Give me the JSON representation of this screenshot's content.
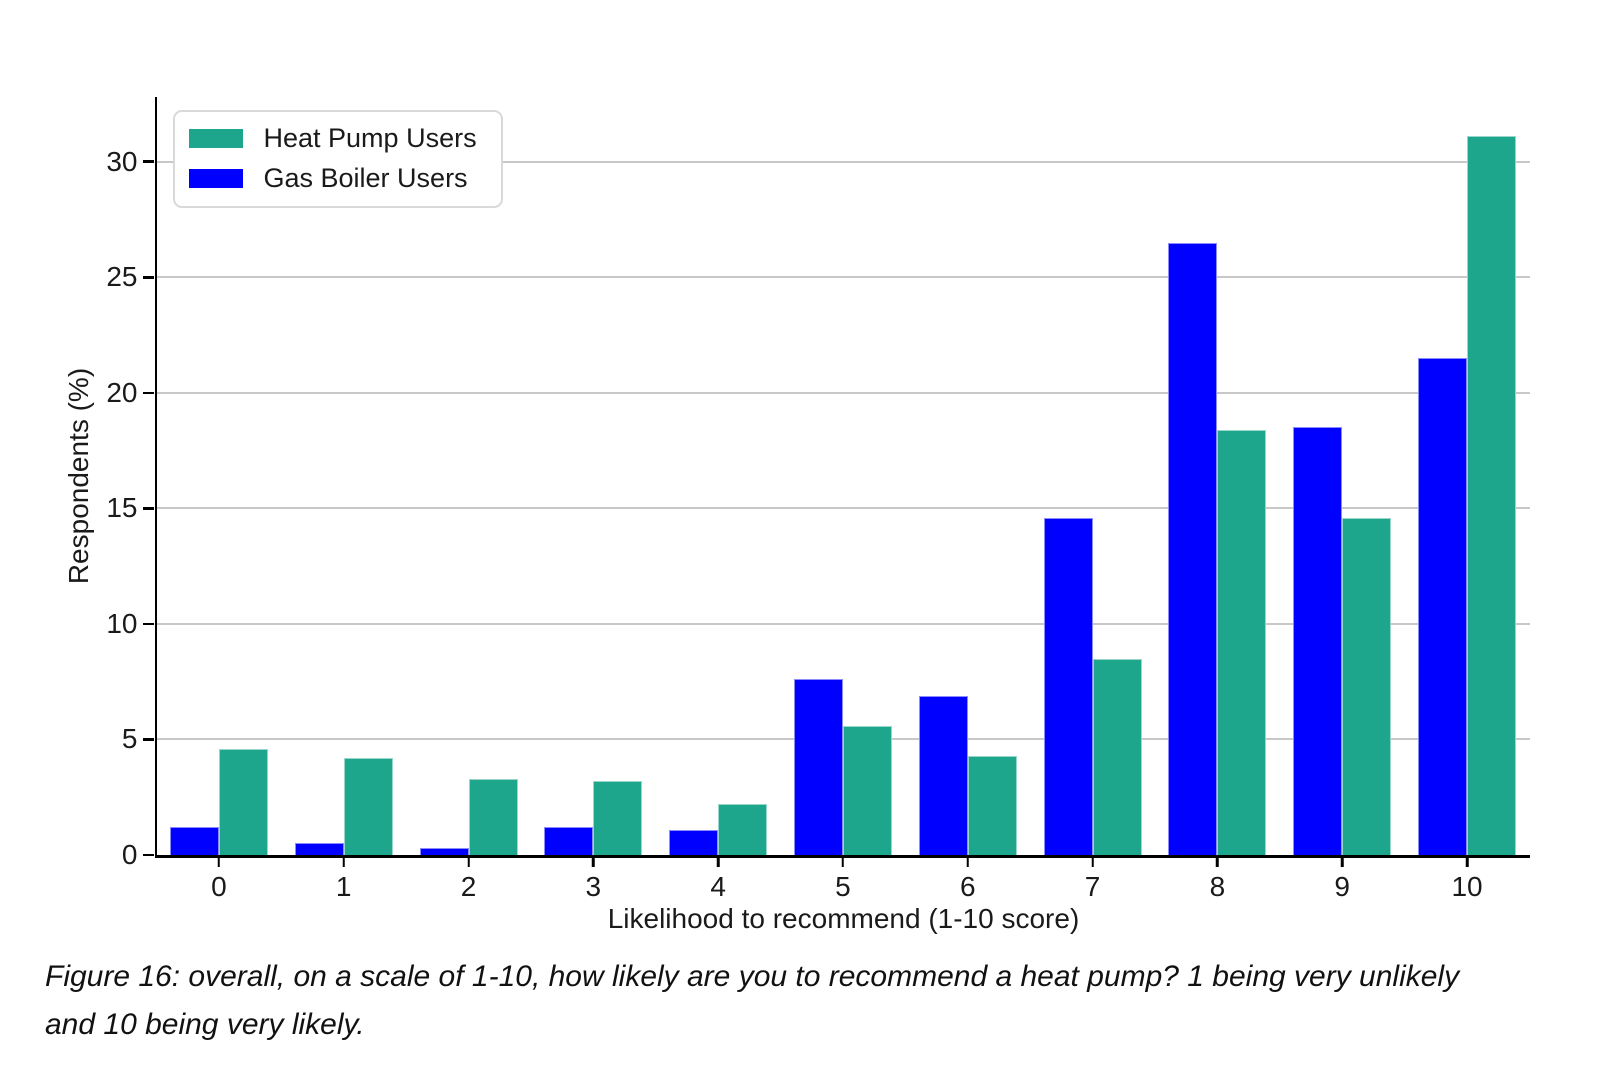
{
  "chart_data": {
    "type": "bar",
    "title": "",
    "categories": [
      "0",
      "1",
      "2",
      "3",
      "4",
      "5",
      "6",
      "7",
      "8",
      "9",
      "10"
    ],
    "series": [
      {
        "name": "Heat Pump Users",
        "color": "#1EA68C",
        "values": [
          4.6,
          4.2,
          3.3,
          3.2,
          2.2,
          5.6,
          4.3,
          8.5,
          18.4,
          14.6,
          31.1
        ]
      },
      {
        "name": "Gas Boiler Users",
        "color": "#0000FF",
        "values": [
          1.2,
          0.5,
          0.3,
          1.2,
          1.1,
          7.6,
          6.9,
          14.6,
          26.5,
          18.5,
          21.5
        ]
      }
    ],
    "group_order": [
      "Gas Boiler Users",
      "Heat Pump Users"
    ],
    "xlabel": "Likelihood to recommend (1-10 score)",
    "ylabel": "Respondents (%)",
    "yticks": [
      0,
      5,
      10,
      15,
      20,
      25,
      30
    ],
    "ylim": [
      0,
      32.8
    ],
    "grid": "horizontal",
    "legend_position": "upper-left"
  },
  "figure": {
    "caption": "Figure 16: overall, on a scale of 1-10, how likely are you to recommend a heat pump? 1 being very unlikely and 10 being very likely."
  },
  "colors": {
    "heat_pump": "#1EA68C",
    "gas_boiler": "#0000FF",
    "gridline": "#C8C8C8",
    "axis": "#000000",
    "text": "#1A1A1A",
    "legend_border": "#D9D9D9"
  }
}
